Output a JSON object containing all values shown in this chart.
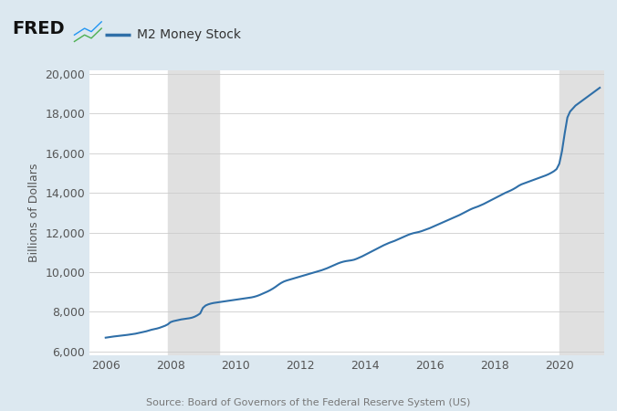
{
  "title": "M2 Money Stock",
  "ylabel": "Billions of Dollars",
  "source": "Source: Board of Governors of the Federal Reserve System (US)",
  "line_color": "#2f6fa8",
  "line_width": 1.5,
  "background_color": "#dce8f0",
  "plot_background_color": "#ffffff",
  "recession_color": "#e0e0e0",
  "ylim": [
    5800,
    20200
  ],
  "yticks": [
    6000,
    8000,
    10000,
    12000,
    14000,
    16000,
    18000,
    20000
  ],
  "xlim_start": 2005.5,
  "xlim_end": 2021.4,
  "xticks": [
    2006,
    2008,
    2010,
    2012,
    2014,
    2016,
    2018,
    2020
  ],
  "recession_1_start": 2007.917,
  "recession_1_end": 2009.5,
  "recession_2_start": 2020.0,
  "recession_2_end": 2021.4,
  "data": [
    [
      2006.0,
      6700
    ],
    [
      2006.083,
      6720
    ],
    [
      2006.167,
      6740
    ],
    [
      2006.25,
      6760
    ],
    [
      2006.333,
      6775
    ],
    [
      2006.417,
      6790
    ],
    [
      2006.5,
      6810
    ],
    [
      2006.583,
      6825
    ],
    [
      2006.667,
      6840
    ],
    [
      2006.75,
      6860
    ],
    [
      2006.833,
      6880
    ],
    [
      2006.917,
      6900
    ],
    [
      2007.0,
      6930
    ],
    [
      2007.083,
      6960
    ],
    [
      2007.167,
      6990
    ],
    [
      2007.25,
      7020
    ],
    [
      2007.333,
      7060
    ],
    [
      2007.417,
      7100
    ],
    [
      2007.5,
      7130
    ],
    [
      2007.583,
      7160
    ],
    [
      2007.667,
      7200
    ],
    [
      2007.75,
      7250
    ],
    [
      2007.833,
      7300
    ],
    [
      2007.917,
      7370
    ],
    [
      2008.0,
      7480
    ],
    [
      2008.083,
      7530
    ],
    [
      2008.167,
      7560
    ],
    [
      2008.25,
      7590
    ],
    [
      2008.333,
      7620
    ],
    [
      2008.417,
      7640
    ],
    [
      2008.5,
      7660
    ],
    [
      2008.583,
      7680
    ],
    [
      2008.667,
      7710
    ],
    [
      2008.75,
      7760
    ],
    [
      2008.833,
      7830
    ],
    [
      2008.917,
      7920
    ],
    [
      2009.0,
      8200
    ],
    [
      2009.083,
      8320
    ],
    [
      2009.167,
      8380
    ],
    [
      2009.25,
      8420
    ],
    [
      2009.333,
      8450
    ],
    [
      2009.417,
      8470
    ],
    [
      2009.5,
      8490
    ],
    [
      2009.583,
      8510
    ],
    [
      2009.667,
      8530
    ],
    [
      2009.75,
      8550
    ],
    [
      2009.833,
      8570
    ],
    [
      2009.917,
      8590
    ],
    [
      2010.0,
      8610
    ],
    [
      2010.083,
      8630
    ],
    [
      2010.167,
      8650
    ],
    [
      2010.25,
      8670
    ],
    [
      2010.333,
      8690
    ],
    [
      2010.417,
      8710
    ],
    [
      2010.5,
      8730
    ],
    [
      2010.583,
      8760
    ],
    [
      2010.667,
      8800
    ],
    [
      2010.75,
      8850
    ],
    [
      2010.833,
      8910
    ],
    [
      2010.917,
      8970
    ],
    [
      2011.0,
      9030
    ],
    [
      2011.083,
      9100
    ],
    [
      2011.167,
      9180
    ],
    [
      2011.25,
      9270
    ],
    [
      2011.333,
      9370
    ],
    [
      2011.417,
      9460
    ],
    [
      2011.5,
      9530
    ],
    [
      2011.583,
      9580
    ],
    [
      2011.667,
      9620
    ],
    [
      2011.75,
      9660
    ],
    [
      2011.833,
      9700
    ],
    [
      2011.917,
      9740
    ],
    [
      2012.0,
      9780
    ],
    [
      2012.083,
      9820
    ],
    [
      2012.167,
      9860
    ],
    [
      2012.25,
      9900
    ],
    [
      2012.333,
      9940
    ],
    [
      2012.417,
      9980
    ],
    [
      2012.5,
      10020
    ],
    [
      2012.583,
      10060
    ],
    [
      2012.667,
      10100
    ],
    [
      2012.75,
      10150
    ],
    [
      2012.833,
      10200
    ],
    [
      2012.917,
      10260
    ],
    [
      2013.0,
      10320
    ],
    [
      2013.083,
      10380
    ],
    [
      2013.167,
      10440
    ],
    [
      2013.25,
      10490
    ],
    [
      2013.333,
      10530
    ],
    [
      2013.417,
      10560
    ],
    [
      2013.5,
      10580
    ],
    [
      2013.583,
      10600
    ],
    [
      2013.667,
      10630
    ],
    [
      2013.75,
      10680
    ],
    [
      2013.833,
      10740
    ],
    [
      2013.917,
      10800
    ],
    [
      2014.0,
      10870
    ],
    [
      2014.083,
      10940
    ],
    [
      2014.167,
      11010
    ],
    [
      2014.25,
      11080
    ],
    [
      2014.333,
      11150
    ],
    [
      2014.417,
      11220
    ],
    [
      2014.5,
      11290
    ],
    [
      2014.583,
      11360
    ],
    [
      2014.667,
      11420
    ],
    [
      2014.75,
      11480
    ],
    [
      2014.833,
      11530
    ],
    [
      2014.917,
      11580
    ],
    [
      2015.0,
      11640
    ],
    [
      2015.083,
      11700
    ],
    [
      2015.167,
      11760
    ],
    [
      2015.25,
      11820
    ],
    [
      2015.333,
      11880
    ],
    [
      2015.417,
      11930
    ],
    [
      2015.5,
      11970
    ],
    [
      2015.583,
      12000
    ],
    [
      2015.667,
      12030
    ],
    [
      2015.75,
      12070
    ],
    [
      2015.833,
      12120
    ],
    [
      2015.917,
      12170
    ],
    [
      2016.0,
      12220
    ],
    [
      2016.083,
      12280
    ],
    [
      2016.167,
      12340
    ],
    [
      2016.25,
      12400
    ],
    [
      2016.333,
      12460
    ],
    [
      2016.417,
      12520
    ],
    [
      2016.5,
      12580
    ],
    [
      2016.583,
      12640
    ],
    [
      2016.667,
      12700
    ],
    [
      2016.75,
      12760
    ],
    [
      2016.833,
      12820
    ],
    [
      2016.917,
      12880
    ],
    [
      2017.0,
      12950
    ],
    [
      2017.083,
      13020
    ],
    [
      2017.167,
      13090
    ],
    [
      2017.25,
      13160
    ],
    [
      2017.333,
      13220
    ],
    [
      2017.417,
      13270
    ],
    [
      2017.5,
      13320
    ],
    [
      2017.583,
      13380
    ],
    [
      2017.667,
      13440
    ],
    [
      2017.75,
      13510
    ],
    [
      2017.833,
      13580
    ],
    [
      2017.917,
      13650
    ],
    [
      2018.0,
      13720
    ],
    [
      2018.083,
      13790
    ],
    [
      2018.167,
      13860
    ],
    [
      2018.25,
      13930
    ],
    [
      2018.333,
      14000
    ],
    [
      2018.417,
      14060
    ],
    [
      2018.5,
      14120
    ],
    [
      2018.583,
      14190
    ],
    [
      2018.667,
      14270
    ],
    [
      2018.75,
      14360
    ],
    [
      2018.833,
      14430
    ],
    [
      2018.917,
      14480
    ],
    [
      2019.0,
      14530
    ],
    [
      2019.083,
      14580
    ],
    [
      2019.167,
      14630
    ],
    [
      2019.25,
      14680
    ],
    [
      2019.333,
      14730
    ],
    [
      2019.417,
      14780
    ],
    [
      2019.5,
      14830
    ],
    [
      2019.583,
      14880
    ],
    [
      2019.667,
      14940
    ],
    [
      2019.75,
      15010
    ],
    [
      2019.833,
      15090
    ],
    [
      2019.917,
      15200
    ],
    [
      2020.0,
      15470
    ],
    [
      2020.083,
      16100
    ],
    [
      2020.167,
      17000
    ],
    [
      2020.25,
      17800
    ],
    [
      2020.333,
      18100
    ],
    [
      2020.417,
      18250
    ],
    [
      2020.5,
      18400
    ],
    [
      2020.583,
      18500
    ],
    [
      2020.667,
      18600
    ],
    [
      2020.75,
      18700
    ],
    [
      2020.833,
      18800
    ],
    [
      2020.917,
      18900
    ],
    [
      2021.0,
      19000
    ],
    [
      2021.083,
      19100
    ],
    [
      2021.167,
      19200
    ],
    [
      2021.25,
      19300
    ]
  ]
}
